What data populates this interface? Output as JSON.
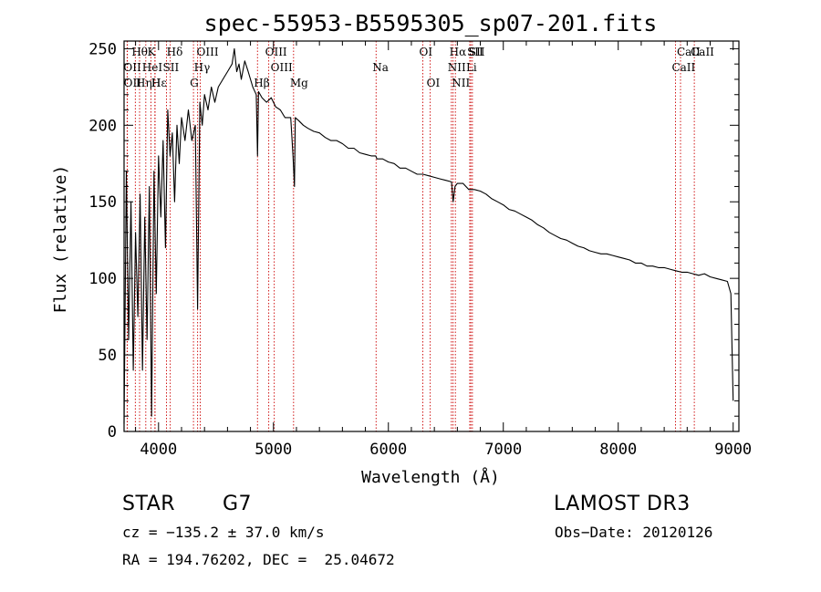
{
  "chart_data": {
    "type": "line",
    "title": "spec-55953-B5595305_sp07-201.fits",
    "xlabel": "Wavelength (Å)",
    "ylabel": "Flux (relative)",
    "xlim": [
      3700,
      9050
    ],
    "ylim": [
      0,
      255
    ],
    "xticks": [
      4000,
      5000,
      6000,
      7000,
      8000,
      9000
    ],
    "yticks": [
      0,
      50,
      100,
      150,
      200,
      250
    ],
    "line_color": "#000000",
    "marker_color": "#cc0000",
    "series": [
      {
        "name": "flux",
        "x": [
          3700,
          3720,
          3740,
          3760,
          3780,
          3800,
          3820,
          3840,
          3860,
          3880,
          3900,
          3920,
          3940,
          3960,
          3980,
          4000,
          4020,
          4040,
          4060,
          4080,
          4100,
          4120,
          4140,
          4160,
          4180,
          4200,
          4230,
          4260,
          4290,
          4320,
          4340,
          4360,
          4380,
          4400,
          4430,
          4460,
          4490,
          4520,
          4560,
          4600,
          4640,
          4660,
          4680,
          4700,
          4720,
          4750,
          4780,
          4820,
          4850,
          4861,
          4870,
          4900,
          4940,
          4980,
          5020,
          5060,
          5100,
          5150,
          5170,
          5183,
          5190,
          5220,
          5260,
          5300,
          5350,
          5400,
          5450,
          5500,
          5550,
          5600,
          5650,
          5700,
          5750,
          5800,
          5850,
          5890,
          5900,
          5950,
          6000,
          6050,
          6100,
          6150,
          6200,
          6250,
          6300,
          6350,
          6400,
          6450,
          6500,
          6550,
          6563,
          6580,
          6600,
          6650,
          6700,
          6750,
          6800,
          6850,
          6900,
          6950,
          7000,
          7050,
          7100,
          7150,
          7200,
          7250,
          7300,
          7350,
          7400,
          7450,
          7500,
          7550,
          7600,
          7650,
          7700,
          7750,
          7800,
          7850,
          7900,
          7950,
          8000,
          8050,
          8100,
          8150,
          8200,
          8250,
          8300,
          8350,
          8400,
          8450,
          8500,
          8550,
          8600,
          8650,
          8700,
          8750,
          8800,
          8850,
          8900,
          8950,
          8980,
          9000
        ],
        "y": [
          5,
          170,
          60,
          150,
          40,
          130,
          75,
          155,
          40,
          140,
          60,
          160,
          10,
          170,
          90,
          180,
          140,
          190,
          120,
          210,
          180,
          195,
          150,
          200,
          175,
          205,
          190,
          210,
          190,
          200,
          80,
          215,
          200,
          220,
          210,
          225,
          215,
          225,
          230,
          235,
          240,
          250,
          235,
          240,
          230,
          242,
          235,
          225,
          220,
          180,
          222,
          218,
          215,
          218,
          212,
          210,
          205,
          205,
          180,
          160,
          205,
          203,
          200,
          198,
          196,
          195,
          192,
          190,
          190,
          188,
          185,
          185,
          182,
          181,
          180,
          180,
          178,
          178,
          176,
          175,
          172,
          172,
          170,
          168,
          168,
          167,
          166,
          165,
          164,
          163,
          150,
          160,
          162,
          162,
          158,
          158,
          157,
          155,
          152,
          150,
          148,
          145,
          144,
          142,
          140,
          138,
          135,
          133,
          130,
          128,
          126,
          125,
          123,
          121,
          120,
          118,
          117,
          116,
          116,
          115,
          114,
          113,
          112,
          110,
          110,
          108,
          108,
          107,
          107,
          106,
          105,
          104,
          104,
          103,
          102,
          103,
          101,
          100,
          99,
          98,
          90,
          20
        ]
      }
    ],
    "lines": [
      {
        "label": "Hθ",
        "x": 3798
      },
      {
        "label": "K",
        "x": 3934
      },
      {
        "label": "Hδ",
        "x": 4102
      },
      {
        "label": "OIII",
        "x": 4363
      },
      {
        "label": "OIII",
        "x": 4959
      },
      {
        "label": "OI",
        "x": 6300
      },
      {
        "label": "Hα",
        "x": 6563
      },
      {
        "label": "SII",
        "x": 6717
      },
      {
        "label": "CaII",
        "x": 8542
      },
      {
        "label": "OII",
        "x": 3727
      },
      {
        "label": "HeI",
        "x": 3889
      },
      {
        "label": "SII",
        "x": 4069
      },
      {
        "label": "Hγ",
        "x": 4340
      },
      {
        "label": "OIII",
        "x": 5007
      },
      {
        "label": "Na",
        "x": 5893
      },
      {
        "label": "NII",
        "x": 6548
      },
      {
        "label": "Li",
        "x": 6708
      },
      {
        "label": "CaII",
        "x": 8498
      },
      {
        "label": "OII",
        "x": 3729
      },
      {
        "label": "Hε",
        "x": 3970
      },
      {
        "label": "Hη",
        "x": 3835
      },
      {
        "label": "H",
        "x": 3968
      },
      {
        "label": "G",
        "x": 4304
      },
      {
        "label": "Hβ",
        "x": 4861
      },
      {
        "label": "Mg",
        "x": 5175
      },
      {
        "label": "OI",
        "x": 6364
      },
      {
        "label": "NII",
        "x": 6583
      },
      {
        "label": "SII",
        "x": 6731
      },
      {
        "label": "CaII",
        "x": 8662
      }
    ]
  },
  "info": {
    "class_label": "STAR",
    "subclass": "G7",
    "survey": "LAMOST DR3",
    "cz": "cz = −135.2 ± 37.0 km/s",
    "obs_date": "Obs−Date: 20120126",
    "coords": "RA = 194.76202, DEC =  25.04672"
  }
}
